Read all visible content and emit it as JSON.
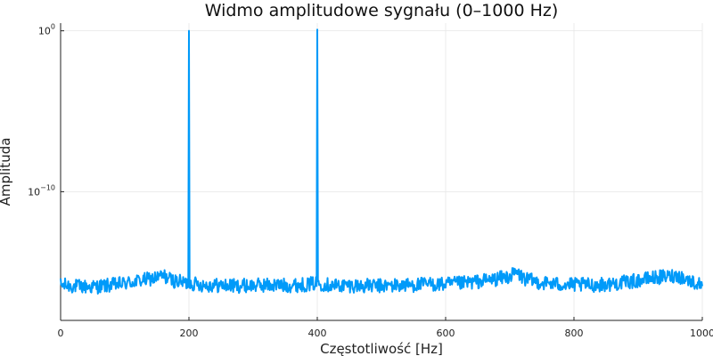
{
  "chart_data": {
    "type": "line",
    "title": "Widmo amplitudowe sygnału (0–1000 Hz)",
    "xlabel": "Częstotliwość [Hz]",
    "ylabel": "Amplituda",
    "y_scale": "log",
    "xlim": [
      0,
      1000
    ],
    "ylim": [
      1e-18,
      3
    ],
    "x_ticks": [
      0,
      200,
      400,
      600,
      800,
      1000
    ],
    "x_tick_labels": [
      "0",
      "200",
      "400",
      "600",
      "800",
      "1000"
    ],
    "y_ticks": [
      1,
      1e-10
    ],
    "y_tick_labels": [
      {
        "base": "10",
        "exp": "0"
      },
      {
        "base": "10",
        "exp": "−10"
      }
    ],
    "grid": true,
    "legend": "none",
    "colors": {
      "series": "#009af9"
    },
    "series": [
      {
        "x": [
          0,
          25,
          50,
          75,
          100,
          125,
          150,
          160,
          175,
          199,
          200,
          201,
          225,
          250,
          275,
          300,
          325,
          350,
          375,
          399,
          400,
          401,
          425,
          450,
          475,
          500,
          525,
          550,
          575,
          600,
          625,
          650,
          675,
          700,
          710,
          725,
          750,
          775,
          800,
          825,
          850,
          875,
          900,
          925,
          950,
          960,
          975,
          1000
        ],
        "y": [
          1.6e-16,
          1.3e-16,
          1.2e-16,
          1.5e-16,
          2e-16,
          3e-16,
          4.5e-16,
          6e-16,
          3e-16,
          2e-16,
          1.0,
          2e-16,
          1.6e-16,
          1.5e-16,
          1.4e-16,
          1.5e-16,
          1.6e-16,
          1.5e-16,
          1.6e-16,
          2e-16,
          1.2,
          2e-16,
          1.5e-16,
          1.5e-16,
          1.4e-16,
          1.4e-16,
          1.5e-16,
          1.6e-16,
          1.8e-16,
          1.7e-16,
          2e-16,
          2.6e-16,
          3.5e-16,
          5.5e-16,
          9e-16,
          3.5e-16,
          2.2e-16,
          1.8e-16,
          1.6e-16,
          1.6e-16,
          1.7e-16,
          2.2e-16,
          3e-16,
          4.5e-16,
          5.5e-16,
          6.5e-16,
          3.5e-16,
          1.5e-16
        ]
      }
    ]
  }
}
